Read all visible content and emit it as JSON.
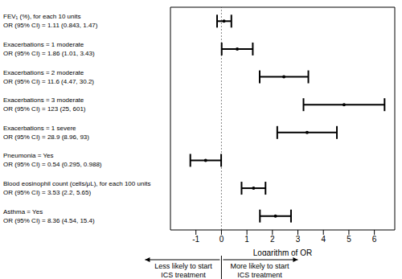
{
  "chart_data": {
    "type": "forest",
    "x_label": "Logarithm of OR",
    "categories": [
      "FEV₁ (%), for each 10 units",
      "Exacerbations = 1 moderate",
      "Exacerbations = 2 moderate",
      "Exacerbations = 3 moderate",
      "Exacerbations = 1 severe",
      "Pneumonia = Yes",
      "Blood eosinophil count (cells/μL), for each 100 units",
      "Asthma = Yes"
    ],
    "ci_labels": [
      "OR (95% CI) = 1.11 (0.843, 1.47)",
      "OR (95% CI) = 1.86 (1.01, 3.43)",
      "OR (95% CI) = 11.6 (4.47, 30.2)",
      "OR (95% CI) = 123 (25, 601)",
      "OR (95% CI) = 28.9 (8.96, 93)",
      "OR (95% CI) = 0.54 (0.295, 0.988)",
      "OR (95% CI) = 3.53 (2.2, 5.65)",
      "OR (95% CI) = 8.36 (4.54, 15.4)"
    ],
    "values": [
      0.1,
      0.62,
      2.45,
      4.81,
      3.36,
      -0.62,
      1.26,
      2.12
    ],
    "ci_lower": [
      -0.17,
      0.01,
      1.5,
      3.22,
      2.19,
      -1.22,
      0.79,
      1.51
    ],
    "ci_upper": [
      0.39,
      1.23,
      3.41,
      6.4,
      4.53,
      -0.01,
      1.73,
      2.73
    ],
    "xlim": [
      -2,
      6.8
    ],
    "xticks": [
      -1,
      0,
      1,
      2,
      3,
      4,
      5,
      6
    ],
    "reference_line": 0,
    "color": "#000000",
    "annotations": {
      "left": "Less likely to start\nICS treatment",
      "right": "More likely to start\nICS treatment"
    }
  }
}
